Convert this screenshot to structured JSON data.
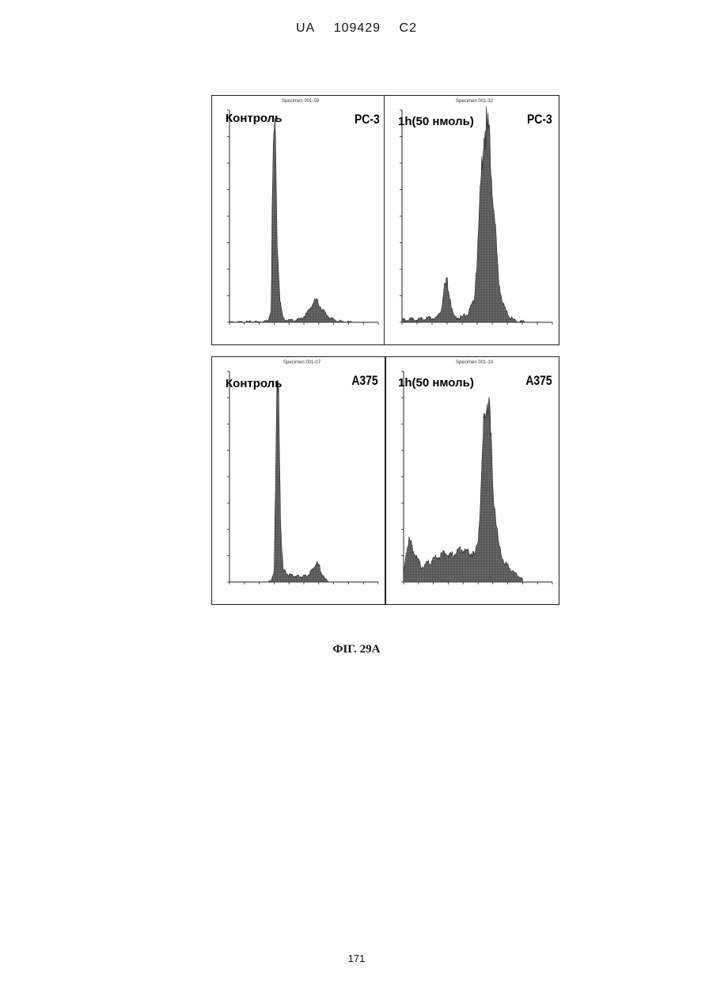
{
  "header": {
    "country": "UA",
    "number": "109429",
    "kind": "C2"
  },
  "figure": {
    "caption": "ФІГ. 29А",
    "panels": [
      {
        "id": "pc3-control",
        "label_left": "Контроль",
        "label_right": "PC-3",
        "specimen": "Specimen 001-59"
      },
      {
        "id": "pc3-1h",
        "label_left": "1h(50 нмоль)",
        "label_right": "PC-3",
        "specimen": "Specimen 001-32"
      },
      {
        "id": "a375-control",
        "label_left": "Контроль",
        "label_right": "A375",
        "specimen": "Specimen 001-07"
      },
      {
        "id": "a375-1h",
        "label_left": "1h(50 нмоль)",
        "label_right": "A375",
        "specimen": "Specimen 001-10"
      }
    ]
  },
  "chart_data": [
    {
      "type": "area",
      "panel": "pc3-control",
      "xlim": [
        0,
        250
      ],
      "x": [
        0,
        25,
        50,
        60,
        65,
        70,
        72,
        75,
        78,
        80,
        85,
        90,
        100,
        110,
        120,
        130,
        140,
        145,
        150,
        160,
        170,
        180,
        190,
        200,
        210
      ],
      "values": [
        0,
        1,
        2,
        3,
        6,
        40,
        380,
        580,
        520,
        260,
        60,
        10,
        6,
        6,
        10,
        25,
        55,
        65,
        55,
        28,
        12,
        5,
        2,
        1,
        0
      ]
    },
    {
      "type": "area",
      "panel": "pc3-1h",
      "xlim": [
        0,
        250
      ],
      "x": [
        0,
        25,
        50,
        60,
        65,
        70,
        75,
        80,
        85,
        90,
        100,
        110,
        120,
        125,
        130,
        135,
        140,
        145,
        150,
        155,
        160,
        170,
        180,
        190,
        200,
        210
      ],
      "values": [
        4,
        6,
        8,
        10,
        25,
        60,
        75,
        45,
        15,
        8,
        10,
        15,
        40,
        120,
        230,
        340,
        360,
        330,
        260,
        170,
        80,
        25,
        8,
        3,
        1,
        0
      ]
    },
    {
      "type": "area",
      "panel": "a375-control",
      "xlim": [
        0,
        250
      ],
      "x": [
        0,
        25,
        50,
        60,
        70,
        75,
        78,
        80,
        83,
        86,
        90,
        100,
        110,
        120,
        130,
        140,
        145,
        150,
        155,
        160,
        170
      ],
      "values": [
        0,
        0,
        0,
        0,
        2,
        40,
        420,
        640,
        560,
        200,
        40,
        22,
        20,
        18,
        20,
        40,
        62,
        55,
        30,
        10,
        0
      ]
    },
    {
      "type": "area",
      "panel": "a375-1h",
      "xlim": [
        0,
        250
      ],
      "x": [
        0,
        5,
        10,
        20,
        30,
        40,
        50,
        60,
        70,
        80,
        90,
        100,
        110,
        120,
        125,
        130,
        135,
        140,
        145,
        150,
        160,
        170,
        180,
        190,
        200
      ],
      "values": [
        20,
        90,
        110,
        70,
        40,
        50,
        60,
        70,
        80,
        70,
        80,
        90,
        80,
        70,
        110,
        230,
        420,
        520,
        440,
        260,
        90,
        50,
        35,
        20,
        8
      ]
    }
  ]
}
